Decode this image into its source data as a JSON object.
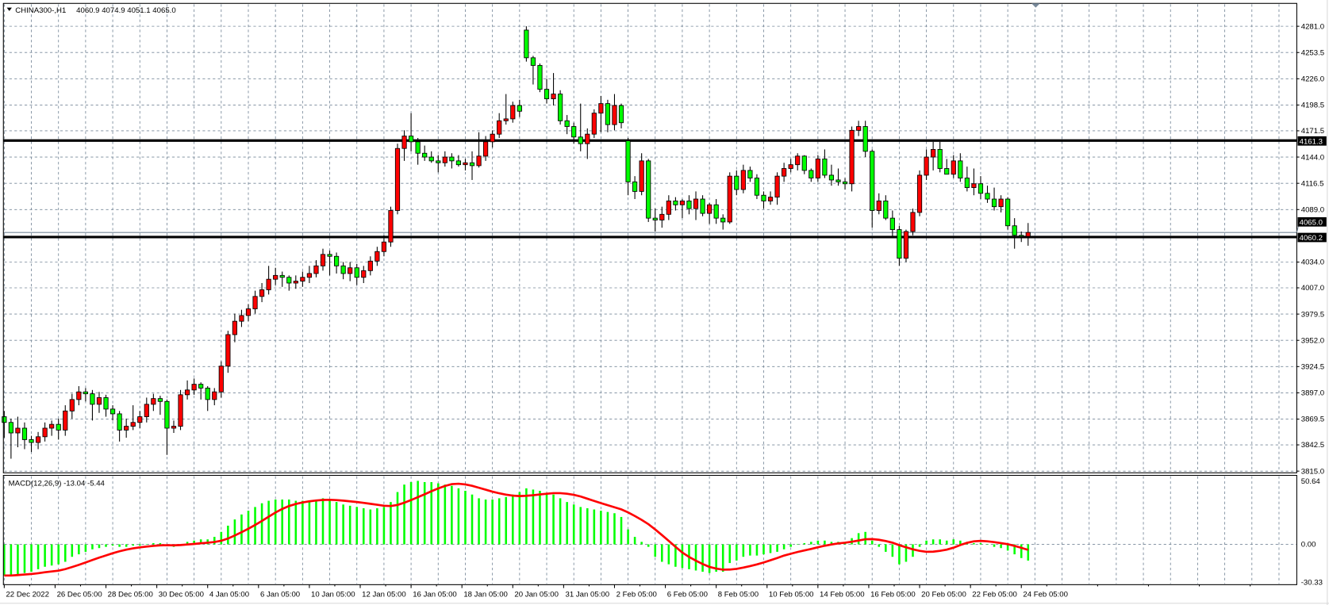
{
  "header": {
    "menu_icon": "triangle-down-icon",
    "symbol": "CHINA300-,H1",
    "ohlc_text": "4060.9 4074.9 4051.1 4065.0"
  },
  "indicator": {
    "label": "MACD(12,26,9) -13.04 -5.44"
  },
  "colors": {
    "bull_candle": "#ff0000",
    "bear_candle": "#00ff00",
    "macd_histogram": "#00ff00",
    "signal_line": "#ff0000",
    "grid": "#778899",
    "levels": "#000000"
  },
  "chart_data": [
    {
      "type": "candlestick",
      "symbol": "CHINA300-",
      "timeframe": "H1",
      "ylim": [
        3815.0,
        4281.0
      ],
      "grid": true,
      "y_ticks": [
        "4281.0",
        "4253.5",
        "4226.0",
        "4198.5",
        "4171.5",
        "4144.0",
        "4116.5",
        "4089.0",
        "4034.0",
        "4007.0",
        "3979.5",
        "3952.0",
        "3924.5",
        "3897.0",
        "3869.5",
        "3842.5",
        "3815.0"
      ],
      "x_ticks": [
        "22 Dec 2022",
        "26 Dec 05:00",
        "28 Dec 05:00",
        "30 Dec 05:00",
        "4 Jan 05:00",
        "6 Jan 05:00",
        "10 Jan 05:00",
        "12 Jan 05:00",
        "16 Jan 05:00",
        "18 Jan 05:00",
        "20 Jan 05:00",
        "31 Jan 05:00",
        "2 Feb 05:00",
        "6 Feb 05:00",
        "8 Feb 05:00",
        "10 Feb 05:00",
        "14 Feb 05:00",
        "16 Feb 05:00",
        "20 Feb 05:00",
        "22 Feb 05:00",
        "24 Feb 05:00"
      ],
      "horizontal_levels": [
        {
          "value": 4161.3,
          "label": "4161.3"
        },
        {
          "value": 4060.2,
          "label": "4060.2"
        }
      ],
      "current_price": {
        "value": 4065.0,
        "label": "4065.0"
      },
      "ohlc": [
        [
          3872,
          3878,
          3850,
          3866
        ],
        [
          3866,
          3870,
          3828,
          3855
        ],
        [
          3855,
          3872,
          3840,
          3860
        ],
        [
          3860,
          3866,
          3838,
          3848
        ],
        [
          3848,
          3852,
          3835,
          3845
        ],
        [
          3845,
          3856,
          3838,
          3851
        ],
        [
          3851,
          3866,
          3846,
          3860
        ],
        [
          3860,
          3868,
          3852,
          3864
        ],
        [
          3864,
          3870,
          3848,
          3858
        ],
        [
          3858,
          3884,
          3852,
          3878
        ],
        [
          3878,
          3896,
          3870,
          3890
        ],
        [
          3890,
          3904,
          3884,
          3898
        ],
        [
          3898,
          3902,
          3888,
          3896
        ],
        [
          3896,
          3900,
          3868,
          3885
        ],
        [
          3885,
          3898,
          3876,
          3892
        ],
        [
          3892,
          3895,
          3872,
          3880
        ],
        [
          3880,
          3884,
          3868,
          3875
        ],
        [
          3875,
          3878,
          3846,
          3858
        ],
        [
          3858,
          3870,
          3850,
          3862
        ],
        [
          3862,
          3884,
          3858,
          3866
        ],
        [
          3866,
          3878,
          3860,
          3872
        ],
        [
          3872,
          3892,
          3866,
          3885
        ],
        [
          3885,
          3896,
          3878,
          3891
        ],
        [
          3891,
          3894,
          3874,
          3888
        ],
        [
          3888,
          3890,
          3832,
          3860
        ],
        [
          3860,
          3868,
          3855,
          3862
        ],
        [
          3862,
          3900,
          3858,
          3895
        ],
        [
          3895,
          3910,
          3890,
          3900
        ],
        [
          3900,
          3912,
          3895,
          3906
        ],
        [
          3906,
          3908,
          3890,
          3902
        ],
        [
          3902,
          3904,
          3878,
          3890
        ],
        [
          3890,
          3902,
          3884,
          3898
        ],
        [
          3898,
          3930,
          3892,
          3925
        ],
        [
          3925,
          3962,
          3918,
          3958
        ],
        [
          3958,
          3980,
          3950,
          3972
        ],
        [
          3972,
          3984,
          3966,
          3978
        ],
        [
          3978,
          3990,
          3972,
          3985
        ],
        [
          3985,
          4004,
          3980,
          3998
        ],
        [
          3998,
          4012,
          3992,
          4005
        ],
        [
          4005,
          4030,
          4000,
          4016
        ],
        [
          4016,
          4028,
          4010,
          4020
        ],
        [
          4020,
          4024,
          4008,
          4018
        ],
        [
          4018,
          4020,
          4004,
          4012
        ],
        [
          4012,
          4020,
          4006,
          4014
        ],
        [
          4014,
          4024,
          4008,
          4018
        ],
        [
          4018,
          4030,
          4012,
          4022
        ],
        [
          4022,
          4036,
          4018,
          4030
        ],
        [
          4030,
          4048,
          4025,
          4042
        ],
        [
          4042,
          4046,
          4020,
          4040
        ],
        [
          4040,
          4044,
          4022,
          4030
        ],
        [
          4030,
          4034,
          4016,
          4022
        ],
        [
          4022,
          4034,
          4014,
          4028
        ],
        [
          4028,
          4032,
          4010,
          4018
        ],
        [
          4018,
          4030,
          4012,
          4025
        ],
        [
          4025,
          4040,
          4020,
          4035
        ],
        [
          4035,
          4050,
          4030,
          4045
        ],
        [
          4045,
          4062,
          4040,
          4055
        ],
        [
          4055,
          4092,
          4050,
          4088
        ],
        [
          4088,
          4158,
          4084,
          4153
        ],
        [
          4153,
          4172,
          4140,
          4166
        ],
        [
          4166,
          4190,
          4150,
          4160
        ],
        [
          4160,
          4164,
          4136,
          4148
        ],
        [
          4148,
          4156,
          4140,
          4144
        ],
        [
          4144,
          4150,
          4138,
          4140
        ],
        [
          4140,
          4146,
          4128,
          4138
        ],
        [
          4138,
          4150,
          4134,
          4144
        ],
        [
          4144,
          4148,
          4132,
          4140
        ],
        [
          4140,
          4146,
          4134,
          4136
        ],
        [
          4136,
          4142,
          4130,
          4138
        ],
        [
          4138,
          4150,
          4120,
          4135
        ],
        [
          4135,
          4170,
          4133,
          4145
        ],
        [
          4145,
          4166,
          4140,
          4160
        ],
        [
          4160,
          4172,
          4154,
          4168
        ],
        [
          4168,
          4190,
          4164,
          4182
        ],
        [
          4182,
          4210,
          4178,
          4184
        ],
        [
          4184,
          4202,
          4180,
          4198
        ],
        [
          4198,
          4204,
          4186,
          4192
        ],
        [
          4277,
          4281,
          4244,
          4248
        ],
        [
          4248,
          4250,
          4220,
          4240
        ],
        [
          4240,
          4242,
          4212,
          4215
        ],
        [
          4215,
          4226,
          4200,
          4205
        ],
        [
          4205,
          4232,
          4198,
          4210
        ],
        [
          4210,
          4214,
          4178,
          4182
        ],
        [
          4182,
          4188,
          4168,
          4176
        ],
        [
          4176,
          4180,
          4158,
          4165
        ],
        [
          4165,
          4200,
          4150,
          4158
        ],
        [
          4158,
          4174,
          4142,
          4168
        ],
        [
          4168,
          4194,
          4164,
          4190
        ],
        [
          4190,
          4208,
          4170,
          4200
        ],
        [
          4200,
          4204,
          4170,
          4178
        ],
        [
          4178,
          4210,
          4172,
          4198
        ],
        [
          4198,
          4200,
          4174,
          4180
        ],
        [
          4161,
          4164,
          4104,
          4118
        ],
        [
          4118,
          4124,
          4100,
          4108
        ],
        [
          4108,
          4148,
          4104,
          4140
        ],
        [
          4140,
          4142,
          4076,
          4080
        ],
        [
          4080,
          4090,
          4066,
          4078
        ],
        [
          4078,
          4092,
          4070,
          4084
        ],
        [
          4084,
          4104,
          4078,
          4098
        ],
        [
          4098,
          4102,
          4088,
          4094
        ],
        [
          4094,
          4100,
          4080,
          4098
        ],
        [
          4098,
          4104,
          4084,
          4090
        ],
        [
          4090,
          4108,
          4078,
          4100
        ],
        [
          4100,
          4104,
          4082,
          4085
        ],
        [
          4085,
          4096,
          4074,
          4094
        ],
        [
          4094,
          4100,
          4074,
          4080
        ],
        [
          4080,
          4084,
          4068,
          4076
        ],
        [
          4076,
          4128,
          4074,
          4124
        ],
        [
          4124,
          4130,
          4104,
          4110
        ],
        [
          4110,
          4136,
          4106,
          4130
        ],
        [
          4130,
          4134,
          4118,
          4122
        ],
        [
          4122,
          4126,
          4100,
          4104
        ],
        [
          4104,
          4108,
          4090,
          4098
        ],
        [
          4098,
          4108,
          4094,
          4102
        ],
        [
          4102,
          4128,
          4094,
          4124
        ],
        [
          4124,
          4138,
          4118,
          4132
        ],
        [
          4132,
          4142,
          4128,
          4136
        ],
        [
          4136,
          4148,
          4130,
          4145
        ],
        [
          4145,
          4146,
          4126,
          4130
        ],
        [
          4130,
          4132,
          4118,
          4122
        ],
        [
          4122,
          4146,
          4118,
          4142
        ],
        [
          4142,
          4152,
          4122,
          4125
        ],
        [
          4125,
          4136,
          4114,
          4120
        ],
        [
          4120,
          4132,
          4114,
          4118
        ],
        [
          4118,
          4122,
          4110,
          4116
        ],
        [
          4116,
          4176,
          4108,
          4172
        ],
        [
          4172,
          4182,
          4166,
          4176
        ],
        [
          4176,
          4182,
          4144,
          4150
        ],
        [
          4150,
          4152,
          4070,
          4088
        ],
        [
          4088,
          4106,
          4084,
          4098
        ],
        [
          4098,
          4104,
          4078,
          4080
        ],
        [
          4080,
          4088,
          4060,
          4068
        ],
        [
          4068,
          4072,
          4030,
          4038
        ],
        [
          4038,
          4068,
          4034,
          4066
        ],
        [
          4066,
          4090,
          4062,
          4086
        ],
        [
          4086,
          4130,
          4082,
          4125
        ],
        [
          4125,
          4152,
          4120,
          4144
        ],
        [
          4144,
          4160,
          4130,
          4152
        ],
        [
          4152,
          4160,
          4128,
          4132
        ],
        [
          4132,
          4142,
          4126,
          4126
        ],
        [
          4126,
          4146,
          4122,
          4140
        ],
        [
          4140,
          4148,
          4118,
          4122
        ],
        [
          4122,
          4134,
          4108,
          4112
        ],
        [
          4112,
          4132,
          4104,
          4116
        ],
        [
          4116,
          4124,
          4100,
          4106
        ],
        [
          4106,
          4114,
          4096,
          4100
        ],
        [
          4100,
          4112,
          4088,
          4092
        ],
        [
          4092,
          4104,
          4086,
          4100
        ],
        [
          4100,
          4102,
          4068,
          4072
        ],
        [
          4072,
          4080,
          4048,
          4062
        ],
        [
          4062,
          4066,
          4055,
          4060.9
        ],
        [
          4060.9,
          4074.9,
          4051.1,
          4065.0
        ]
      ]
    },
    {
      "type": "bar+line",
      "name": "MACD(12,26,9)",
      "ylim": [
        -30.33,
        50.64
      ],
      "y_ticks": [
        "50.64",
        "0.00",
        "-30.33"
      ],
      "signal_period": 9,
      "macd": [
        -25,
        -25,
        -24,
        -23,
        -22,
        -20,
        -18,
        -17,
        -16,
        -14,
        -10,
        -8,
        -6,
        -4,
        -3,
        -2,
        -1,
        -2,
        -2,
        -1,
        -1,
        0,
        1,
        1,
        -1,
        -2,
        0,
        2,
        3,
        4,
        4,
        6,
        10,
        15,
        20,
        24,
        27,
        30,
        33,
        35,
        36,
        36,
        36,
        35,
        35,
        35,
        36,
        37,
        36,
        34,
        32,
        31,
        30,
        29,
        28,
        29,
        30,
        34,
        42,
        48,
        50,
        51,
        50,
        50,
        49,
        48,
        47,
        45,
        43,
        40,
        37,
        36,
        36,
        37,
        38,
        40,
        42,
        45,
        44,
        43,
        41,
        40,
        37,
        34,
        32,
        30,
        29,
        28,
        27,
        26,
        25,
        22,
        12,
        6,
        2,
        -2,
        -10,
        -14,
        -16,
        -18,
        -19,
        -20,
        -21,
        -22,
        -23,
        -22,
        -22,
        -15,
        -13,
        -10,
        -9,
        -9,
        -8,
        -7,
        -6,
        -4,
        -2,
        0,
        1,
        2,
        3,
        3,
        2,
        2,
        1,
        5,
        9,
        10,
        3,
        -2,
        -6,
        -10,
        -16,
        -14,
        -10,
        -2,
        3,
        4,
        4,
        3,
        4,
        3,
        2,
        1,
        1,
        0,
        -2,
        -3,
        -5,
        -8,
        -11,
        -13.04
      ],
      "signal_last": -5.44
    }
  ]
}
